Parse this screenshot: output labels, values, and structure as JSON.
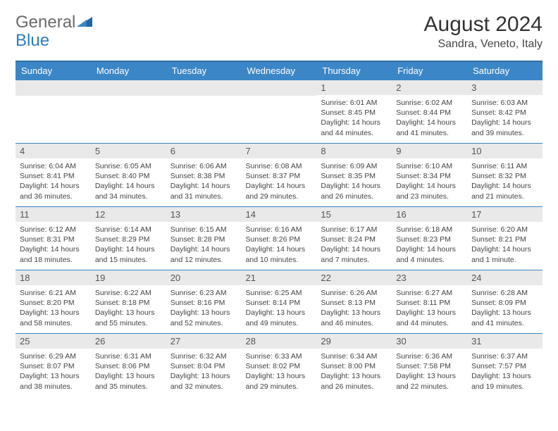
{
  "logo": {
    "general": "General",
    "blue": "Blue"
  },
  "title": "August 2024",
  "location": "Sandra, Veneto, Italy",
  "colors": {
    "header_bg": "#3b86c6",
    "header_border_top": "#2f6fa6",
    "row_border": "#3b86c6",
    "daynum_bg": "#e9e9e9",
    "logo_gray": "#6a6a6a",
    "logo_blue": "#2f7bbf",
    "page_bg": "#ffffff"
  },
  "typography": {
    "title_fontsize": 30,
    "location_fontsize": 16,
    "th_fontsize": 13,
    "daynum_fontsize": 13,
    "cell_fontsize": 10.5
  },
  "day_headers": [
    "Sunday",
    "Monday",
    "Tuesday",
    "Wednesday",
    "Thursday",
    "Friday",
    "Saturday"
  ],
  "weeks": [
    [
      null,
      null,
      null,
      null,
      {
        "n": "1",
        "sunrise": "6:01 AM",
        "sunset": "8:45 PM",
        "daylight": "14 hours and 44 minutes."
      },
      {
        "n": "2",
        "sunrise": "6:02 AM",
        "sunset": "8:44 PM",
        "daylight": "14 hours and 41 minutes."
      },
      {
        "n": "3",
        "sunrise": "6:03 AM",
        "sunset": "8:42 PM",
        "daylight": "14 hours and 39 minutes."
      }
    ],
    [
      {
        "n": "4",
        "sunrise": "6:04 AM",
        "sunset": "8:41 PM",
        "daylight": "14 hours and 36 minutes."
      },
      {
        "n": "5",
        "sunrise": "6:05 AM",
        "sunset": "8:40 PM",
        "daylight": "14 hours and 34 minutes."
      },
      {
        "n": "6",
        "sunrise": "6:06 AM",
        "sunset": "8:38 PM",
        "daylight": "14 hours and 31 minutes."
      },
      {
        "n": "7",
        "sunrise": "6:08 AM",
        "sunset": "8:37 PM",
        "daylight": "14 hours and 29 minutes."
      },
      {
        "n": "8",
        "sunrise": "6:09 AM",
        "sunset": "8:35 PM",
        "daylight": "14 hours and 26 minutes."
      },
      {
        "n": "9",
        "sunrise": "6:10 AM",
        "sunset": "8:34 PM",
        "daylight": "14 hours and 23 minutes."
      },
      {
        "n": "10",
        "sunrise": "6:11 AM",
        "sunset": "8:32 PM",
        "daylight": "14 hours and 21 minutes."
      }
    ],
    [
      {
        "n": "11",
        "sunrise": "6:12 AM",
        "sunset": "8:31 PM",
        "daylight": "14 hours and 18 minutes."
      },
      {
        "n": "12",
        "sunrise": "6:14 AM",
        "sunset": "8:29 PM",
        "daylight": "14 hours and 15 minutes."
      },
      {
        "n": "13",
        "sunrise": "6:15 AM",
        "sunset": "8:28 PM",
        "daylight": "14 hours and 12 minutes."
      },
      {
        "n": "14",
        "sunrise": "6:16 AM",
        "sunset": "8:26 PM",
        "daylight": "14 hours and 10 minutes."
      },
      {
        "n": "15",
        "sunrise": "6:17 AM",
        "sunset": "8:24 PM",
        "daylight": "14 hours and 7 minutes."
      },
      {
        "n": "16",
        "sunrise": "6:18 AM",
        "sunset": "8:23 PM",
        "daylight": "14 hours and 4 minutes."
      },
      {
        "n": "17",
        "sunrise": "6:20 AM",
        "sunset": "8:21 PM",
        "daylight": "14 hours and 1 minute."
      }
    ],
    [
      {
        "n": "18",
        "sunrise": "6:21 AM",
        "sunset": "8:20 PM",
        "daylight": "13 hours and 58 minutes."
      },
      {
        "n": "19",
        "sunrise": "6:22 AM",
        "sunset": "8:18 PM",
        "daylight": "13 hours and 55 minutes."
      },
      {
        "n": "20",
        "sunrise": "6:23 AM",
        "sunset": "8:16 PM",
        "daylight": "13 hours and 52 minutes."
      },
      {
        "n": "21",
        "sunrise": "6:25 AM",
        "sunset": "8:14 PM",
        "daylight": "13 hours and 49 minutes."
      },
      {
        "n": "22",
        "sunrise": "6:26 AM",
        "sunset": "8:13 PM",
        "daylight": "13 hours and 46 minutes."
      },
      {
        "n": "23",
        "sunrise": "6:27 AM",
        "sunset": "8:11 PM",
        "daylight": "13 hours and 44 minutes."
      },
      {
        "n": "24",
        "sunrise": "6:28 AM",
        "sunset": "8:09 PM",
        "daylight": "13 hours and 41 minutes."
      }
    ],
    [
      {
        "n": "25",
        "sunrise": "6:29 AM",
        "sunset": "8:07 PM",
        "daylight": "13 hours and 38 minutes."
      },
      {
        "n": "26",
        "sunrise": "6:31 AM",
        "sunset": "8:06 PM",
        "daylight": "13 hours and 35 minutes."
      },
      {
        "n": "27",
        "sunrise": "6:32 AM",
        "sunset": "8:04 PM",
        "daylight": "13 hours and 32 minutes."
      },
      {
        "n": "28",
        "sunrise": "6:33 AM",
        "sunset": "8:02 PM",
        "daylight": "13 hours and 29 minutes."
      },
      {
        "n": "29",
        "sunrise": "6:34 AM",
        "sunset": "8:00 PM",
        "daylight": "13 hours and 26 minutes."
      },
      {
        "n": "30",
        "sunrise": "6:36 AM",
        "sunset": "7:58 PM",
        "daylight": "13 hours and 22 minutes."
      },
      {
        "n": "31",
        "sunrise": "6:37 AM",
        "sunset": "7:57 PM",
        "daylight": "13 hours and 19 minutes."
      }
    ]
  ]
}
